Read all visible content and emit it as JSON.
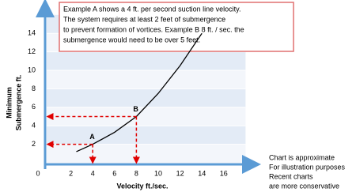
{
  "chart_data": {
    "type": "line",
    "y_label": [
      "Minimum",
      "Submergence  ft."
    ],
    "x_label": "Velocity ft./sec.",
    "xlim": [
      0,
      18
    ],
    "ylim": [
      0,
      16
    ],
    "xticks": [
      0,
      2,
      4,
      6,
      8,
      10,
      12,
      14,
      16
    ],
    "yticks": [
      2,
      4,
      6,
      8,
      10,
      12,
      14
    ],
    "series": [
      {
        "color": "#000000",
        "x": [
          2.5,
          4,
          6,
          8,
          10,
          12,
          14
        ],
        "values": [
          1.2,
          2,
          3.3,
          5,
          7.5,
          10.5,
          14
        ]
      }
    ],
    "annotations": [
      {
        "text": "A",
        "x": 4,
        "y": 2
      },
      {
        "text": "B",
        "x": 8,
        "y": 5
      }
    ],
    "callout": [
      "Example A shows a 4 ft. per second suction line velocity.",
      "The system requires at least 2 feet of submergence",
      "to prevent formation of vortices. Example B  8 ft. / sec.  the",
      "submergence would need to be over 5 feet."
    ],
    "note": [
      "Chart is approximate",
      "For illustration purposes",
      "Recent charts",
      "are more conservative"
    ]
  }
}
